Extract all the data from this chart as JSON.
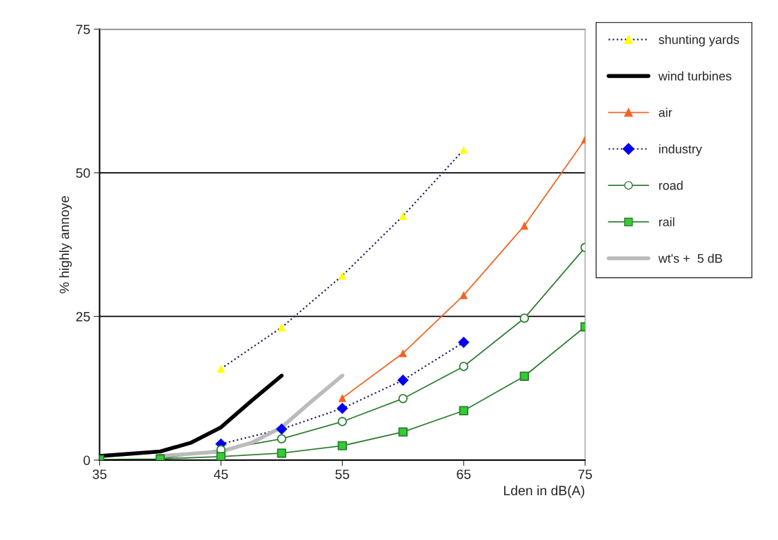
{
  "chart_data": {
    "type": "line",
    "xlabel": "Lden in dB(A)",
    "ylabel": "% highly annoye",
    "xlim": [
      35,
      75
    ],
    "ylim": [
      0,
      75
    ],
    "xticks": [
      35,
      45,
      55,
      65,
      75
    ],
    "yticks": [
      0,
      25,
      50,
      75
    ],
    "grid": "y",
    "legend": "right",
    "series": [
      {
        "name": "shunting yards",
        "color": "#1f1f5f",
        "colors": [
          "#ffff00",
          "#ffff00",
          "#ffff00",
          "#ffff00",
          "#ffff00"
        ],
        "marker": "triangle",
        "line_style": "dotted",
        "x": [
          45,
          50,
          55,
          60,
          65
        ],
        "values": [
          15.9,
          23.1,
          32.1,
          42.5,
          54.0
        ]
      },
      {
        "name": "wind turbines",
        "color": "#000000",
        "marker": "none",
        "line_style": "solid",
        "x": [
          35,
          40,
          42.5,
          45,
          47.5,
          50
        ],
        "values": [
          0.7,
          1.5,
          3.0,
          5.7,
          10.3,
          14.7
        ]
      },
      {
        "name": "air",
        "color": "#f26522",
        "colors": [
          "#f26522",
          "#f26522",
          "#f26522",
          "#f26522",
          "#f26522"
        ],
        "marker": "triangle",
        "line_style": "solid",
        "x": [
          55,
          60,
          65,
          70,
          75
        ],
        "values": [
          10.8,
          18.6,
          28.7,
          40.8,
          55.8
        ]
      },
      {
        "name": "industry",
        "color": "#1f1f5f",
        "colors": [
          "#0000ee",
          "#0000ee",
          "#0000ee",
          "#0000ee",
          "#0000ee"
        ],
        "marker": "diamond",
        "line_style": "dotted",
        "x": [
          45,
          50,
          55,
          60,
          65
        ],
        "values": [
          2.8,
          5.4,
          9.0,
          13.9,
          20.5
        ]
      },
      {
        "name": "road",
        "color": "#2e7d32",
        "colors": [
          "#ffffff",
          "#ffffff",
          "#ffffff",
          "#ffffff",
          "#ffffff",
          "#ffffff",
          "#ffffff",
          "#ffffff"
        ],
        "marker": "circle",
        "line_style": "solid",
        "x": [
          40,
          45,
          50,
          55,
          60,
          65,
          70,
          75
        ],
        "values": [
          0.2,
          1.8,
          3.7,
          6.7,
          10.7,
          16.3,
          24.7,
          37.0
        ]
      },
      {
        "name": "rail",
        "color": "#2e7d32",
        "colors": [
          "#33cc33",
          "#33cc33",
          "#33cc33",
          "#33cc33",
          "#33cc33",
          "#33cc33",
          "#33cc33",
          "#33cc33",
          "#33cc33"
        ],
        "marker": "square",
        "line_style": "solid",
        "x": [
          35,
          40,
          45,
          50,
          55,
          60,
          65,
          70,
          75
        ],
        "values": [
          0.1,
          0.2,
          0.6,
          1.2,
          2.5,
          4.9,
          8.6,
          14.6,
          23.2
        ]
      },
      {
        "name": "wt's +  5 dB",
        "color": "#bbbbbb",
        "marker": "none",
        "line_style": "solid",
        "x": [
          40,
          45,
          47.5,
          50,
          52.5,
          55
        ],
        "values": [
          0.7,
          1.5,
          3.0,
          5.7,
          10.3,
          14.7
        ]
      }
    ]
  }
}
